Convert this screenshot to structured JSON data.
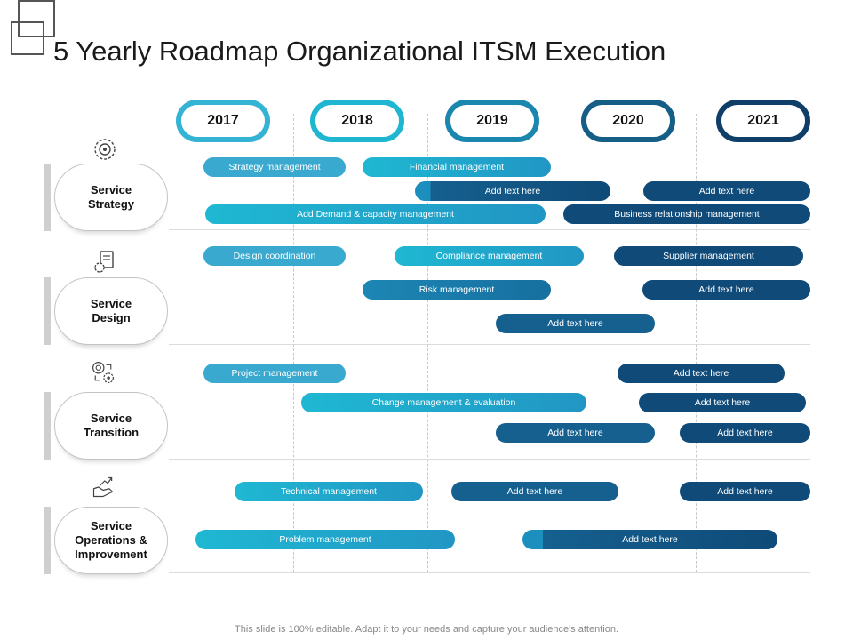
{
  "title": "5 Yearly Roadmap Organizational ITSM Execution",
  "years": [
    "2017",
    "2018",
    "2019",
    "2020",
    "2021"
  ],
  "year_colors": [
    "#35b3d4",
    "#1fb6d2",
    "#1b86ae",
    "#155e86",
    "#0f3f68"
  ],
  "categories": [
    {
      "label": "Service\nStrategy",
      "icon": "gears-icon"
    },
    {
      "label": "Service\nDesign",
      "icon": "design-document-icon"
    },
    {
      "label": "Service\nTransition",
      "icon": "transition-gears-icon"
    },
    {
      "label": "Service\nOperations &\nImprovement",
      "icon": "operations-hand-icon"
    }
  ],
  "tasks": {
    "strategy": [
      {
        "label": "Strategy management"
      },
      {
        "label": "Financial management"
      },
      {
        "label": "Add text here"
      },
      {
        "label": "Add text here"
      },
      {
        "label": "Add Demand & capacity management"
      },
      {
        "label": "Business relationship management"
      }
    ],
    "design": [
      {
        "label": "Design coordination"
      },
      {
        "label": "Compliance management"
      },
      {
        "label": "Supplier management"
      },
      {
        "label": "Risk management"
      },
      {
        "label": "Add text here"
      },
      {
        "label": "Add text here"
      }
    ],
    "transition": [
      {
        "label": "Project management"
      },
      {
        "label": "Add text here"
      },
      {
        "label": "Change management & evaluation"
      },
      {
        "label": "Add text here"
      },
      {
        "label": "Add text here"
      },
      {
        "label": "Add text here"
      }
    ],
    "operations": [
      {
        "label": "Technical management"
      },
      {
        "label": "Add text here"
      },
      {
        "label": "Add text here"
      },
      {
        "label": "Problem management"
      },
      {
        "label": "Add text here"
      }
    ]
  },
  "footer": "This slide is 100% editable. Adapt it to your needs and capture your audience's attention."
}
